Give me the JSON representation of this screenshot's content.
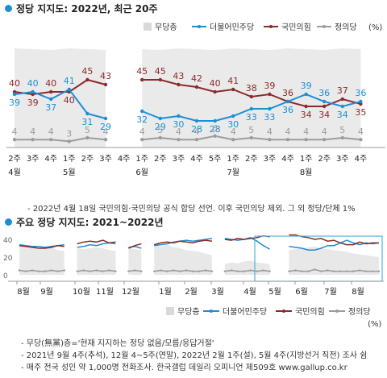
{
  "chart_data": [
    {
      "type": "line",
      "title": "정당 지지도: 2022년, 최근 20주",
      "legend": {
        "position": "top-right",
        "unit_label": "(%)"
      },
      "x_ticks_week": [
        "2주",
        "3주",
        "4주",
        "1주",
        "2주",
        "3주",
        "4주",
        "1주",
        "2주",
        "3주",
        "4주",
        "5주",
        "1주",
        "2주",
        "3주",
        "4주",
        "1주",
        "2주",
        "3주",
        "4주"
      ],
      "x_ticks_month": [
        {
          "label": "4월",
          "at": 0
        },
        {
          "label": "5월",
          "at": 3
        },
        {
          "label": "6월",
          "at": 7
        },
        {
          "label": "7월",
          "at": 12
        },
        {
          "label": "8월",
          "at": 16
        }
      ],
      "series": [
        {
          "name": "무당층",
          "color": "#d9d9d9",
          "role": "area",
          "values": [
            4,
            4,
            4,
            3,
            5,
            4,
            null,
            4,
            5,
            4,
            4,
            6,
            4,
            5,
            4,
            4,
            4,
            4,
            5,
            4
          ]
        },
        {
          "name": "더불어민주당",
          "color": "#1a8fd6",
          "values": [
            39,
            40,
            37,
            41,
            31,
            29,
            null,
            32,
            29,
            30,
            28,
            28,
            30,
            33,
            33,
            36,
            39,
            36,
            34,
            36
          ]
        },
        {
          "name": "국민의힘",
          "color": "#8b2a2a",
          "values": [
            40,
            39,
            40,
            40,
            45,
            43,
            null,
            45,
            45,
            43,
            42,
            40,
            41,
            38,
            39,
            36,
            34,
            34,
            37,
            35
          ]
        },
        {
          "name": "정의당",
          "color": "#9c9c9c",
          "values": [
            4,
            4,
            4,
            3,
            5,
            4,
            null,
            4,
            5,
            4,
            4,
            6,
            4,
            5,
            4,
            4,
            4,
            4,
            5,
            4
          ]
        }
      ],
      "ylim": [
        0,
        55
      ]
    },
    {
      "type": "line",
      "title": "주요 정당 지지도: 2021~2022년",
      "legend": {
        "position": "bottom-right",
        "unit_label": "(%)"
      },
      "y_ticks": [
        "40",
        "20",
        "0"
      ],
      "ylim": [
        0,
        50
      ],
      "x_month_labels": [
        "8월",
        "9월",
        "10월",
        "11월",
        "12월",
        "1월",
        "2월",
        "3월",
        "4월",
        "5월",
        "6월",
        "7월",
        "8월"
      ],
      "series": [
        {
          "name": "무당층",
          "color": "#d9d9d9",
          "role": "area",
          "values": [
            32,
            31,
            30,
            29,
            30,
            31,
            28,
            27,
            null,
            30,
            29,
            30,
            31,
            30,
            28,
            27,
            null,
            30,
            29,
            28,
            null,
            33,
            32,
            34,
            31,
            30,
            28,
            27,
            26,
            24,
            22,
            null,
            12,
            14,
            13,
            15,
            16,
            14,
            13,
            12,
            null,
            null,
            28,
            29,
            30,
            31,
            32,
            30,
            29,
            28,
            27,
            26,
            24,
            23,
            22,
            21,
            20
          ]
        },
        {
          "name": "더불어민주당",
          "color": "#1a8fd6",
          "values": [
            34,
            33,
            32,
            32,
            31,
            32,
            33,
            34,
            null,
            31,
            32,
            34,
            33,
            35,
            36,
            35,
            null,
            31,
            32,
            30,
            null,
            33,
            34,
            35,
            37,
            38,
            39,
            38,
            39,
            40,
            41,
            null,
            41,
            40,
            39,
            40,
            42,
            38,
            33,
            29,
            null,
            null,
            32,
            31,
            30,
            28,
            28,
            30,
            33,
            33,
            36,
            39,
            36,
            34,
            36,
            35,
            36
          ]
        },
        {
          "name": "국민의힘",
          "color": "#8b2a2a",
          "values": [
            33,
            32,
            31,
            30,
            30,
            31,
            33,
            32,
            null,
            35,
            37,
            38,
            37,
            39,
            36,
            37,
            null,
            30,
            33,
            35,
            null,
            34,
            36,
            37,
            36,
            38,
            37,
            36,
            38,
            39,
            38,
            null,
            40,
            39,
            41,
            40,
            41,
            42,
            44,
            43,
            null,
            null,
            45,
            45,
            43,
            42,
            40,
            41,
            38,
            39,
            36,
            34,
            34,
            37,
            35,
            36,
            36
          ]
        },
        {
          "name": "정의당",
          "color": "#9c9c9c",
          "values": [
            5,
            4,
            5,
            4,
            4,
            5,
            4,
            5,
            null,
            4,
            5,
            4,
            5,
            4,
            5,
            4,
            null,
            4,
            5,
            4,
            null,
            4,
            5,
            4,
            5,
            4,
            5,
            4,
            4,
            5,
            4,
            null,
            4,
            5,
            4,
            4,
            5,
            4,
            5,
            4,
            null,
            null,
            4,
            5,
            4,
            4,
            6,
            4,
            5,
            4,
            4,
            4,
            4,
            5,
            4,
            4,
            4
          ]
        }
      ]
    }
  ],
  "panel1": {
    "title": "정당 지지도: 2022년, 최근 20주"
  },
  "panel2": {
    "title": "주요 정당 지지도: 2021~2022년"
  },
  "note1": "- 2022년 4월 18일 국민의힘·국민의당 공식 합당 선언. 이후 국민의당 제외. 그 외 정당/단체 1%",
  "footnotes": [
    "- 무당(無黨)층='현재 지지하는 정당 없음/모름/응답거절'",
    "- 2021년 9월 4주(추석), 12월 4~5주(연말), 2022년 2월 1주(설), 5월 4주(지방선거 직전) 조사 쉼",
    "- 매주 전국 성인 약 1,000명 전화조사. 한국갤럽 데일리 오피니언 제509호 www.gallup.co.kr"
  ],
  "colors": {
    "accent": "#1a8fd6",
    "ppp": "#8b2a2a",
    "justice": "#9c9c9c",
    "area": "#d9d9d9",
    "highlight": "#49b3de"
  }
}
